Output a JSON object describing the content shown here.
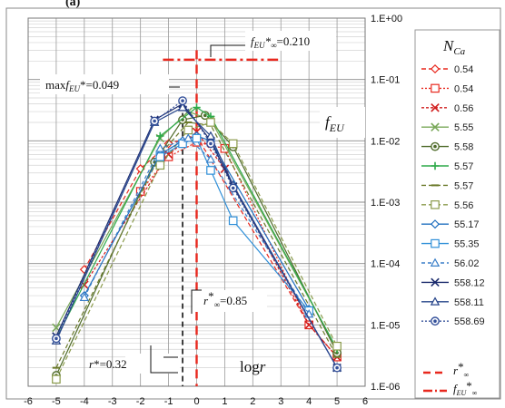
{
  "panel_label": "(a)",
  "chart_data": {
    "type": "line",
    "x_axis": {
      "scale": "linear",
      "range": [
        -6,
        6
      ],
      "ticks": [
        "-6",
        "-5",
        "-4",
        "-3",
        "-2",
        "-1",
        "0",
        "1",
        "2",
        "3",
        "4",
        "5",
        "6"
      ]
    },
    "y_axis": {
      "scale": "log",
      "range": [
        1e-06,
        1
      ],
      "ticks": [
        "1.E-06",
        "1.E-05",
        "1.E-04",
        "1.E-03",
        "1.E-02",
        "1.E-01",
        "1.E+00"
      ]
    },
    "grid": true,
    "x_label": "logr",
    "y_label": "fEU",
    "legend_title": "NCa",
    "legend_position": "right",
    "series": [
      {
        "name": "0.54",
        "color": "#e8281e",
        "dash": "5,3",
        "marker": "diamond",
        "x": [
          -4,
          -2,
          -1,
          0,
          4,
          5
        ],
        "y": [
          8e-05,
          0.0035,
          0.009,
          0.012,
          1e-05,
          3e-06
        ]
      },
      {
        "name": "0.54",
        "color": "#e8281e",
        "dash": "2,2",
        "marker": "square",
        "x": [
          -2,
          -1,
          0,
          1,
          4,
          5
        ],
        "y": [
          0.0015,
          0.0055,
          0.0095,
          0.0075,
          1e-05,
          3e-06
        ]
      },
      {
        "name": "0.56",
        "color": "#d11e1e",
        "dash": "3,2",
        "marker": "x",
        "x": [
          -4,
          -1,
          0,
          1,
          4,
          5
        ],
        "y": [
          4.5e-05,
          0.006,
          0.014,
          0.0035,
          1e-05,
          3e-06
        ]
      },
      {
        "name": "5.55",
        "color": "#7aa85a",
        "dash": "",
        "marker": "x",
        "x": [
          -5,
          -1.3,
          -0.3,
          0.5,
          5
        ],
        "y": [
          9e-06,
          0.011,
          0.03,
          0.022,
          4e-06
        ]
      },
      {
        "name": "5.58",
        "color": "#4f6b2a",
        "dash": "",
        "marker": "circle",
        "x": [
          -5,
          -1.5,
          -0.5,
          0.3,
          1.3,
          5
        ],
        "y": [
          1.5e-06,
          0.0045,
          0.022,
          0.026,
          0.008,
          3.5e-06
        ]
      },
      {
        "name": "5.57",
        "color": "#2eaa4a",
        "dash": "",
        "marker": "plus",
        "x": [
          -5,
          -1.3,
          0,
          0.5,
          5
        ],
        "y": [
          6e-06,
          0.012,
          0.035,
          0.025,
          4e-06
        ]
      },
      {
        "name": "5.57",
        "color": "#6b7a2a",
        "dash": "5,3",
        "marker": "dash",
        "x": [
          -5,
          -1.3,
          -0.3,
          0.5,
          5
        ],
        "y": [
          2e-06,
          0.006,
          0.02,
          0.018,
          3e-06
        ]
      },
      {
        "name": "5.56",
        "color": "#8a9a4a",
        "dash": "5,3",
        "marker": "square",
        "x": [
          -5,
          -1.3,
          -0.3,
          0.5,
          1.3,
          5
        ],
        "y": [
          1.3e-06,
          0.004,
          0.015,
          0.02,
          0.009,
          4.5e-06
        ]
      },
      {
        "name": "55.17",
        "color": "#1f6fbf",
        "dash": "",
        "marker": "diamond",
        "x": [
          -4,
          -1.3,
          -0.5,
          0,
          0.5,
          4
        ],
        "y": [
          3e-05,
          0.006,
          0.01,
          0.012,
          0.01,
          1.8e-05
        ]
      },
      {
        "name": "55.35",
        "color": "#2f8fd8",
        "dash": "",
        "marker": "square",
        "x": [
          -1.3,
          -0.5,
          0,
          0.5,
          1.3,
          4
        ],
        "y": [
          0.0055,
          0.009,
          0.011,
          0.0033,
          0.0005,
          1.7e-05
        ]
      },
      {
        "name": "56.02",
        "color": "#3a7fc8",
        "dash": "4,3",
        "marker": "triangle",
        "x": [
          -4,
          -1.3,
          -0.3,
          0.5,
          4
        ],
        "y": [
          2.8e-05,
          0.0075,
          0.011,
          0.005,
          1.5e-05
        ]
      },
      {
        "name": "558.12",
        "color": "#1a2a6c",
        "dash": "",
        "marker": "x",
        "x": [
          -5,
          -1.5,
          -0.5,
          0.5,
          1.3,
          5
        ],
        "y": [
          6.5e-06,
          0.022,
          0.04,
          0.01,
          0.0018,
          2e-06
        ]
      },
      {
        "name": "558.11",
        "color": "#26448a",
        "dash": "",
        "marker": "triangle",
        "x": [
          -5,
          -1.5,
          -0.5,
          0.5,
          1.3,
          5
        ],
        "y": [
          5.5e-06,
          0.02,
          0.035,
          0.012,
          0.0019,
          2e-06
        ]
      },
      {
        "name": "558.69",
        "color": "#34509a",
        "dash": "2,2",
        "marker": "circle",
        "x": [
          -5,
          -1.5,
          -0.5,
          0.5,
          1.3,
          5
        ],
        "y": [
          6e-06,
          0.021,
          0.045,
          0.009,
          0.0017,
          2e-06
        ]
      }
    ],
    "reference_lines": [
      {
        "name": "r*∞",
        "type": "vertical",
        "x": 0,
        "color": "#e8281e",
        "dash": "10,6"
      },
      {
        "name": "fEU*∞",
        "type": "horizontal",
        "y": 0.21,
        "x_range": [
          -1.2,
          2.9
        ],
        "color": "#e8281e",
        "dash": "12,4,3,4"
      },
      {
        "name": "r*",
        "type": "vertical",
        "x": -0.5,
        "color": "#111111",
        "dash": "6,4"
      }
    ],
    "annotations": {
      "f_inf": "fEU*∞=0.210",
      "maxf": "maxfEU*=0.049",
      "r_inf": "r*∞=0.85",
      "r_star": "r*=0.32"
    }
  }
}
